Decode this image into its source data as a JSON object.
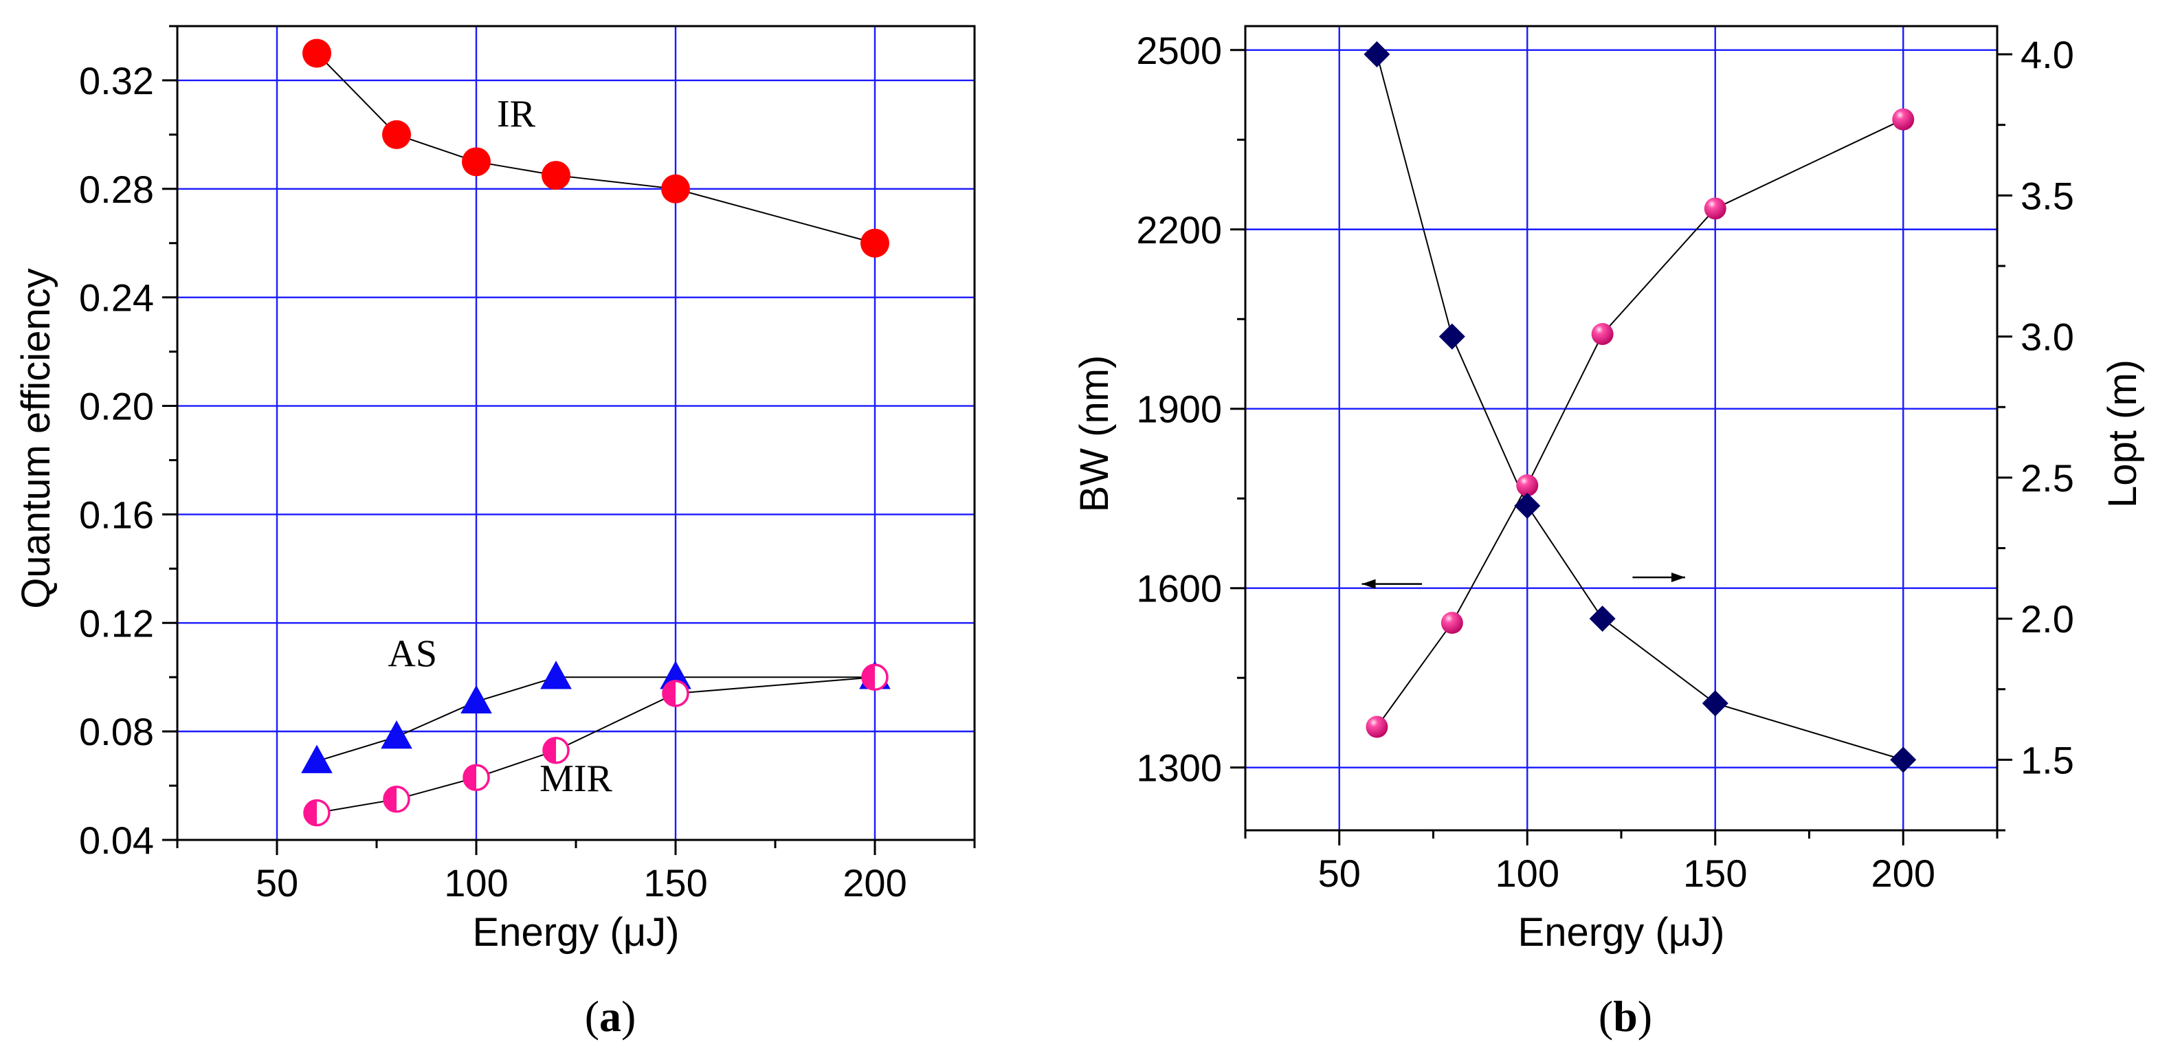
{
  "colors": {
    "grid": "#1a1aff",
    "frame": "#000000",
    "ir": "#ff0000",
    "as": "#0a0af5",
    "mir": "#ff1493",
    "bw": "#ff1493",
    "lopt": "#000066",
    "line": "#000000"
  },
  "chart_data": [
    {
      "id": "a",
      "type": "scatter",
      "panel_label": "(a)",
      "panel_letter": "a",
      "xlabel": "Energy (μJ)",
      "ylabel": "Quantum efficiency",
      "xlim": [
        25,
        225
      ],
      "ylim": [
        0.04,
        0.34
      ],
      "xticks": [
        50,
        100,
        150,
        200
      ],
      "xtick_labels": [
        "50",
        "100",
        "150",
        "200"
      ],
      "yticks": [
        0.04,
        0.08,
        0.12,
        0.16,
        0.2,
        0.24,
        0.28,
        0.32
      ],
      "ytick_labels": [
        "0.04",
        "0.08",
        "0.12",
        "0.16",
        "0.20",
        "0.24",
        "0.28",
        "0.32"
      ],
      "grid": true,
      "series": [
        {
          "name": "IR",
          "marker": "circle",
          "x": [
            60,
            80,
            100,
            120,
            150,
            200
          ],
          "y": [
            0.33,
            0.3,
            0.29,
            0.285,
            0.28,
            0.26
          ]
        },
        {
          "name": "AS",
          "marker": "triangle",
          "x": [
            60,
            80,
            100,
            120,
            150,
            200
          ],
          "y": [
            0.069,
            0.078,
            0.091,
            0.1,
            0.1,
            0.1
          ]
        },
        {
          "name": "MIR",
          "marker": "half-circle",
          "x": [
            60,
            80,
            100,
            120,
            150,
            200
          ],
          "y": [
            0.05,
            0.055,
            0.063,
            0.073,
            0.094,
            0.1
          ]
        }
      ],
      "annotations": [
        {
          "text": "IR",
          "x": 110,
          "y": 0.303
        },
        {
          "text": "AS",
          "x": 84,
          "y": 0.104
        },
        {
          "text": "MIR",
          "x": 125,
          "y": 0.058
        }
      ]
    },
    {
      "id": "b",
      "type": "scatter",
      "panel_label": "(b)",
      "panel_letter": "b",
      "xlabel": "Energy (μJ)",
      "ylabel": "BW (nm)",
      "ylabel_right": "Lopt (m)",
      "xlim": [
        25,
        225
      ],
      "ylim": [
        1195,
        2540
      ],
      "ylim_right": [
        1.25,
        4.1
      ],
      "xticks": [
        50,
        100,
        150,
        200
      ],
      "xtick_labels": [
        "50",
        "100",
        "150",
        "200"
      ],
      "yticks": [
        1300,
        1600,
        1900,
        2200,
        2500
      ],
      "ytick_labels": [
        "1300",
        "1600",
        "1900",
        "2200",
        "2500"
      ],
      "yticks_right": [
        1.5,
        2.0,
        2.5,
        3.0,
        3.5,
        4.0
      ],
      "ytick_labels_right": [
        "1.5",
        "2.0",
        "2.5",
        "3.0",
        "3.5",
        "4.0"
      ],
      "grid": true,
      "series": [
        {
          "name": "BW",
          "axis": "left",
          "marker": "sphere",
          "x": [
            60,
            80,
            100,
            120,
            150,
            200
          ],
          "y": [
            1368,
            1542,
            1772,
            2025,
            2235,
            2384
          ]
        },
        {
          "name": "Lopt",
          "axis": "right",
          "marker": "diamond",
          "x": [
            60,
            80,
            100,
            120,
            150,
            200
          ],
          "y": [
            4.0,
            3.0,
            2.4,
            2.0,
            1.7,
            1.5
          ]
        }
      ],
      "arrows": [
        {
          "direction": "left",
          "x_from": 72,
          "x_to": 56,
          "y": 1607
        },
        {
          "direction": "right",
          "x_from": 128,
          "x_to": 142,
          "y": 1618
        }
      ]
    }
  ]
}
